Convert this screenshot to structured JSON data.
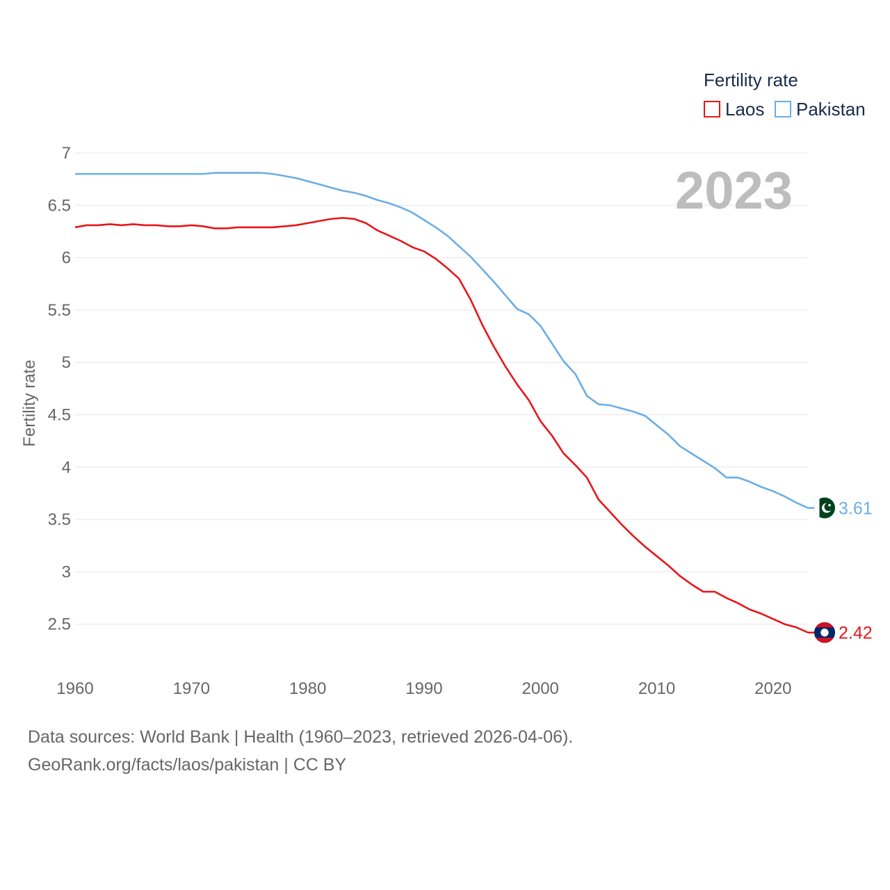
{
  "chart_data": {
    "type": "line",
    "title": "",
    "ylabel": "Fertility rate",
    "xlabel": "",
    "year_display": "2023",
    "legend": {
      "title": "Fertility rate",
      "placement": "top-right"
    },
    "xlim": [
      1960,
      2023
    ],
    "ylim": [
      2,
      7
    ],
    "xticks": [
      1960,
      1970,
      1980,
      1990,
      2000,
      2010,
      2020
    ],
    "yticks": [
      2.5,
      3,
      3.5,
      4,
      4.5,
      5,
      5.5,
      6,
      6.5,
      7
    ],
    "grid": true,
    "x": [
      1960,
      1961,
      1962,
      1963,
      1964,
      1965,
      1966,
      1967,
      1968,
      1969,
      1970,
      1971,
      1972,
      1973,
      1974,
      1975,
      1976,
      1977,
      1978,
      1979,
      1980,
      1981,
      1982,
      1983,
      1984,
      1985,
      1986,
      1987,
      1988,
      1989,
      1990,
      1991,
      1992,
      1993,
      1994,
      1995,
      1996,
      1997,
      1998,
      1999,
      2000,
      2001,
      2002,
      2003,
      2004,
      2005,
      2006,
      2007,
      2008,
      2009,
      2010,
      2011,
      2012,
      2013,
      2014,
      2015,
      2016,
      2017,
      2018,
      2019,
      2020,
      2021,
      2022,
      2023
    ],
    "series": [
      {
        "name": "Laos",
        "color": "#e8151a",
        "flag": "laos-flag",
        "end_label": "2.42",
        "values": [
          6.29,
          6.31,
          6.31,
          6.32,
          6.31,
          6.32,
          6.31,
          6.31,
          6.3,
          6.3,
          6.31,
          6.3,
          6.28,
          6.28,
          6.29,
          6.29,
          6.29,
          6.29,
          6.3,
          6.31,
          6.33,
          6.35,
          6.37,
          6.38,
          6.37,
          6.33,
          6.26,
          6.21,
          6.16,
          6.1,
          6.06,
          5.99,
          5.9,
          5.8,
          5.6,
          5.36,
          5.15,
          4.96,
          4.79,
          4.64,
          4.44,
          4.3,
          4.13,
          4.02,
          3.9,
          3.69,
          3.57,
          3.45,
          3.34,
          3.24,
          3.15,
          3.06,
          2.96,
          2.88,
          2.81,
          2.81,
          2.75,
          2.7,
          2.64,
          2.6,
          2.55,
          2.5,
          2.47,
          2.42
        ]
      },
      {
        "name": "Pakistan",
        "color": "#6aaee5",
        "flag": "pakistan-flag",
        "end_label": "3.61",
        "values": [
          6.8,
          6.8,
          6.8,
          6.8,
          6.8,
          6.8,
          6.8,
          6.8,
          6.8,
          6.8,
          6.8,
          6.8,
          6.81,
          6.81,
          6.81,
          6.81,
          6.81,
          6.8,
          6.78,
          6.76,
          6.73,
          6.7,
          6.67,
          6.64,
          6.62,
          6.59,
          6.55,
          6.52,
          6.48,
          6.43,
          6.36,
          6.29,
          6.21,
          6.11,
          6.01,
          5.89,
          5.77,
          5.64,
          5.51,
          5.46,
          5.35,
          5.18,
          5.01,
          4.89,
          4.68,
          4.6,
          4.59,
          4.56,
          4.53,
          4.49,
          4.4,
          4.31,
          4.2,
          4.13,
          4.06,
          3.99,
          3.9,
          3.9,
          3.86,
          3.81,
          3.77,
          3.72,
          3.66,
          3.61
        ]
      }
    ]
  },
  "footer": {
    "line1": "Data sources: World Bank | Health (1960–2023, retrieved 2026-04-06).",
    "line2": "GeoRank.org/facts/laos/pakistan | CC BY"
  }
}
